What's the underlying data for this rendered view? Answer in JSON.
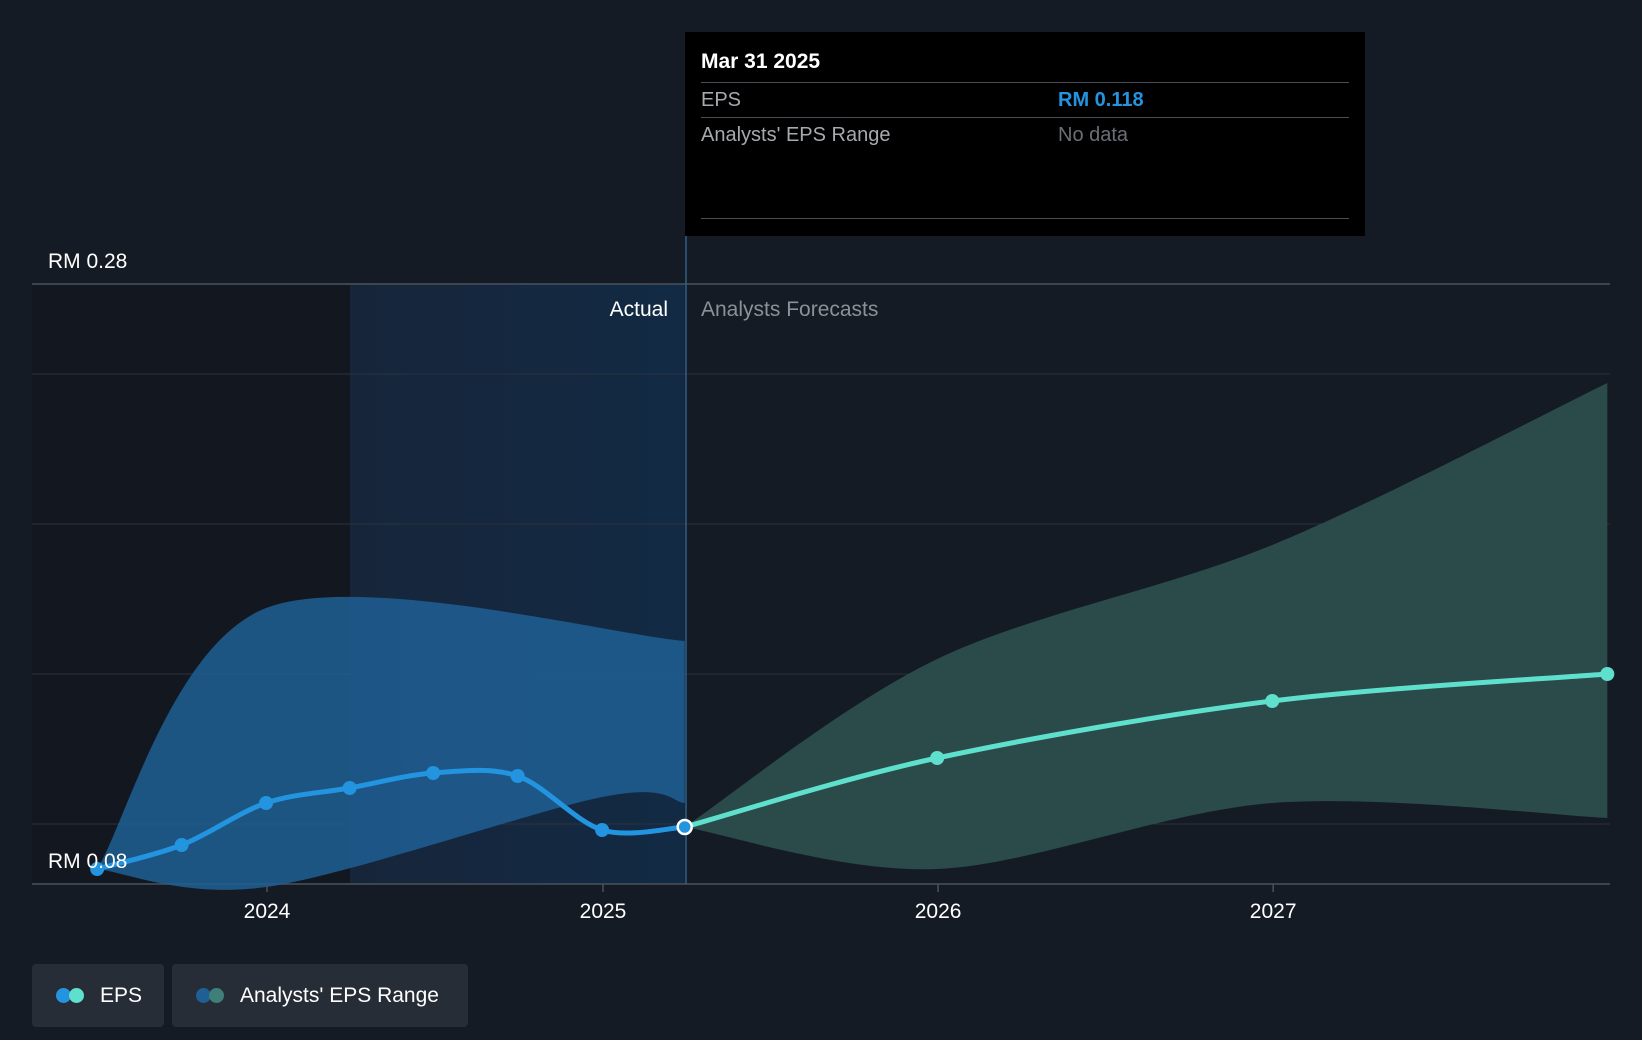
{
  "colors": {
    "background": "#151b24",
    "eps_actual": "#2394df",
    "eps_forecast": "#5ee0cc",
    "range_actual": "#1e5f94",
    "range_forecast": "#2c4d4d",
    "grid": "#2b323c"
  },
  "tooltip": {
    "date": "Mar 31 2025",
    "eps_label": "EPS",
    "eps_value": "RM 0.118",
    "range_label": "Analysts' EPS Range",
    "range_value": "No data"
  },
  "legend": {
    "eps": "EPS",
    "range": "Analysts' EPS Range"
  },
  "chart_data": {
    "type": "line",
    "y_axis_labels": {
      "top": "RM 0.28",
      "bottom": "RM 0.08"
    },
    "ylim": [
      0.08,
      0.28
    ],
    "x_tick_labels": [
      "2024",
      "2025",
      "2026",
      "2027"
    ],
    "section_labels": {
      "actual": "Actual",
      "forecast": "Analysts Forecasts"
    },
    "grid": true,
    "series": [
      {
        "name": "EPS",
        "kind": "actual",
        "points": [
          {
            "x": "2023-06-30",
            "y": 0.085
          },
          {
            "x": "2023-09-30",
            "y": 0.093
          },
          {
            "x": "2023-12-31",
            "y": 0.107
          },
          {
            "x": "2024-03-31",
            "y": 0.112
          },
          {
            "x": "2024-06-30",
            "y": 0.117
          },
          {
            "x": "2024-09-30",
            "y": 0.116
          },
          {
            "x": "2024-12-31",
            "y": 0.098
          },
          {
            "x": "2025-03-31",
            "y": 0.118
          }
        ]
      },
      {
        "name": "EPS",
        "kind": "forecast",
        "points": [
          {
            "x": "2025-03-31",
            "y": 0.099
          },
          {
            "x": "2025-12-31",
            "y": 0.122
          },
          {
            "x": "2026-12-31",
            "y": 0.141
          },
          {
            "x": "2027-12-31",
            "y": 0.15
          }
        ]
      },
      {
        "name": "Analysts' EPS Range",
        "kind": "actual_range",
        "upper": [
          {
            "x": "2023-06-30",
            "y": 0.085
          },
          {
            "x": "2023-12-31",
            "y": 0.172
          },
          {
            "x": "2025-03-31",
            "y": 0.161
          }
        ],
        "lower": [
          {
            "x": "2023-06-30",
            "y": 0.085
          },
          {
            "x": "2023-12-31",
            "y": 0.079
          },
          {
            "x": "2024-12-31",
            "y": 0.109
          },
          {
            "x": "2025-03-31",
            "y": 0.107
          }
        ]
      },
      {
        "name": "Analysts' EPS Range",
        "kind": "forecast_range",
        "upper": [
          {
            "x": "2025-03-31",
            "y": 0.099
          },
          {
            "x": "2025-12-31",
            "y": 0.155
          },
          {
            "x": "2026-12-31",
            "y": 0.193
          },
          {
            "x": "2027-12-31",
            "y": 0.247
          }
        ],
        "lower": [
          {
            "x": "2025-03-31",
            "y": 0.099
          },
          {
            "x": "2025-12-31",
            "y": 0.085
          },
          {
            "x": "2026-12-31",
            "y": 0.107
          },
          {
            "x": "2027-12-31",
            "y": 0.102
          }
        ]
      }
    ]
  }
}
